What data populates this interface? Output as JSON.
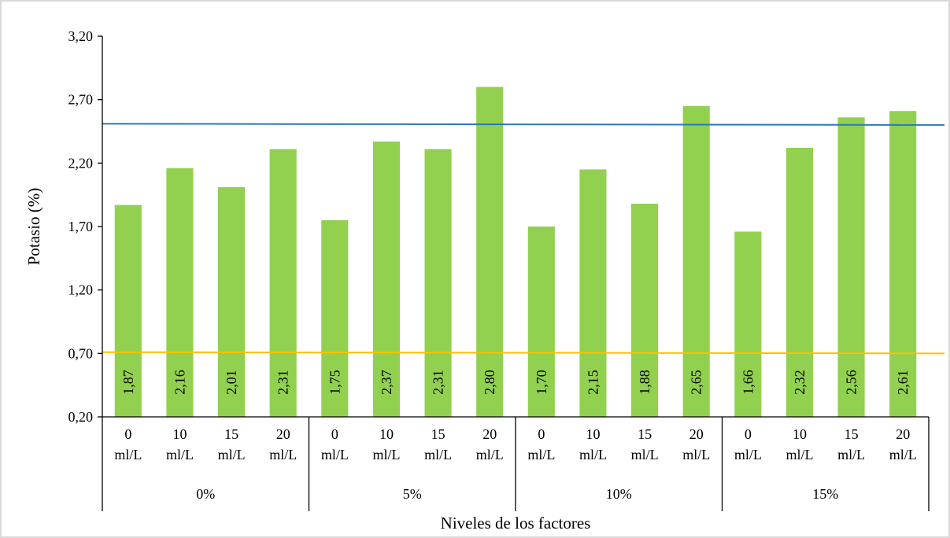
{
  "chart_data": {
    "type": "bar",
    "title": "",
    "xlabel": "Niveles de los factores",
    "ylabel": "Potasio (%)",
    "ylim": [
      0.2,
      3.2
    ],
    "yticks": [
      "0,20",
      "0,70",
      "1,20",
      "1,70",
      "2,20",
      "2,70",
      "3,20"
    ],
    "ytick_values": [
      0.2,
      0.7,
      1.2,
      1.7,
      2.2,
      2.7,
      3.2
    ],
    "grid": false,
    "bar_color": "#92d050",
    "groups": [
      {
        "label": "0%",
        "categories": [
          [
            "0",
            "ml/L"
          ],
          [
            "10",
            "ml/L"
          ],
          [
            "15",
            "ml/L"
          ],
          [
            "20",
            "ml/L"
          ]
        ],
        "values": [
          1.87,
          2.16,
          2.01,
          2.31
        ],
        "value_labels": [
          "1,87",
          "2,16",
          "2,01",
          "2,31"
        ]
      },
      {
        "label": "5%",
        "categories": [
          [
            "0",
            "ml/L"
          ],
          [
            "10",
            "ml/L"
          ],
          [
            "15",
            "ml/L"
          ],
          [
            "20",
            "ml/L"
          ]
        ],
        "values": [
          1.75,
          2.37,
          2.31,
          2.8
        ],
        "value_labels": [
          "1,75",
          "2,37",
          "2,31",
          "2,80"
        ]
      },
      {
        "label": "10%",
        "categories": [
          [
            "0",
            "ml/L"
          ],
          [
            "10",
            "ml/L"
          ],
          [
            "15",
            "ml/L"
          ],
          [
            "20",
            "ml/L"
          ]
        ],
        "values": [
          1.7,
          2.15,
          1.88,
          2.65
        ],
        "value_labels": [
          "1,70",
          "2,15",
          "1,88",
          "2,65"
        ]
      },
      {
        "label": "15%",
        "categories": [
          [
            "0",
            "ml/L"
          ],
          [
            "10",
            "ml/L"
          ],
          [
            "15",
            "ml/L"
          ],
          [
            "20",
            "ml/L"
          ]
        ],
        "values": [
          1.66,
          2.32,
          2.56,
          2.61
        ],
        "value_labels": [
          "1,66",
          "2,32",
          "2,56",
          "2,61"
        ]
      }
    ],
    "reference_lines": [
      {
        "color": "#2e75b6",
        "y_start": 2.51,
        "y_end": 2.5
      },
      {
        "color": "#ffc000",
        "y_start": 0.71,
        "y_end": 0.7
      }
    ]
  }
}
